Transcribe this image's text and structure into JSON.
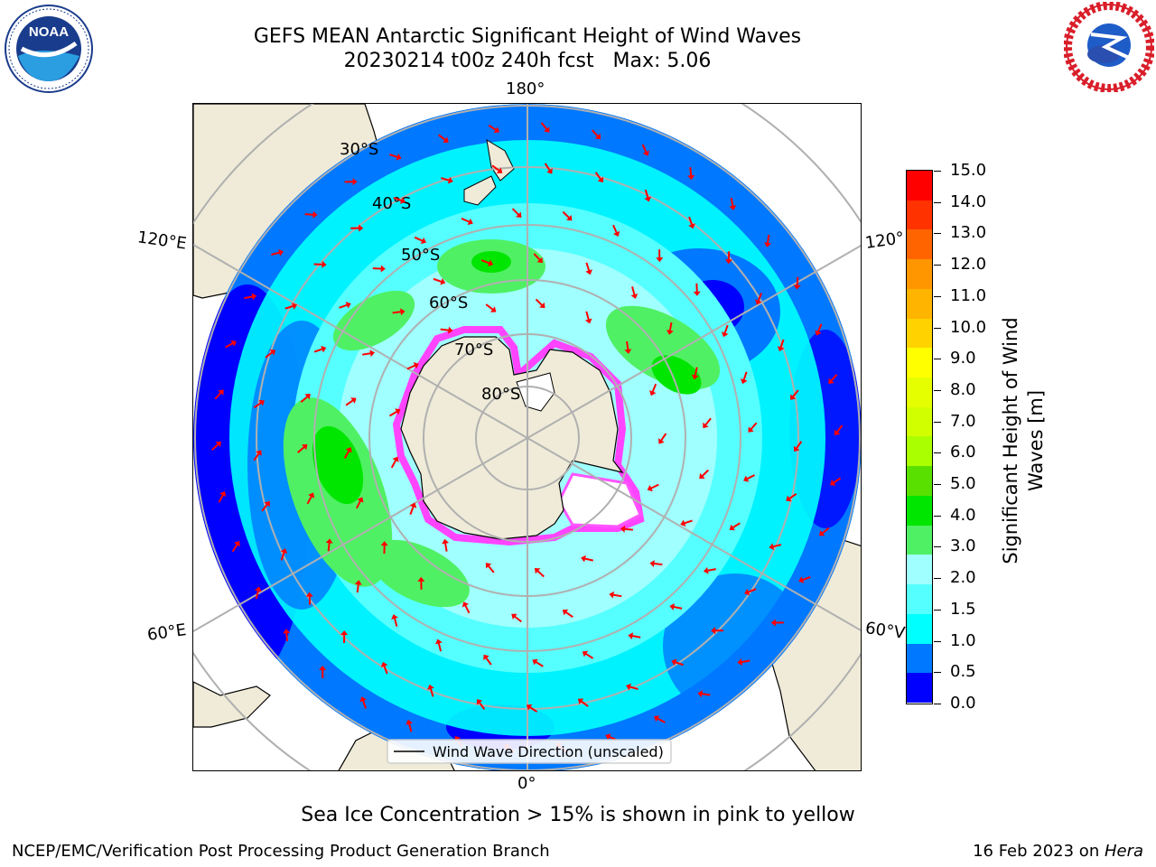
{
  "header": {
    "title_line1": "GEFS MEAN Antarctic Significant Height of Wind Waves",
    "title_line2": "20230214 t00z 240h fcst   Max: 5.06"
  },
  "logos": {
    "left": {
      "name": "noaa-logo",
      "text": "NOAA",
      "ring_text": "NATIONAL OCEANIC AND ATMOSPHERIC ADMINISTRATION · U.S. DEPARTMENT OF COMMERCE"
    },
    "right": {
      "name": "nws-logo",
      "ring_text": "NATIONAL WEATHER SERVICE"
    }
  },
  "map": {
    "longitude_labels": {
      "top": "180°",
      "bottom": "0°",
      "upper_left": "120°E",
      "lower_left": "60°E",
      "upper_right": "120°",
      "lower_right": "60°V"
    },
    "latitude_labels": [
      "30°S",
      "40°S",
      "50°S",
      "60°S",
      "70°S",
      "80°S"
    ],
    "legend": "Wind Wave Direction (unscaled)",
    "colors": {
      "land": "#efebd8",
      "ocean_deep_blue": "#0000ff",
      "ocean_blue": "#0078ff",
      "arrow": "#ff0000"
    }
  },
  "colorbar": {
    "title": "Significant Height of Wind Waves [m]",
    "title_line1": "Significant Height of Wind",
    "title_line2": "Waves [m]",
    "tick_labels": [
      "15.0",
      "14.0",
      "13.0",
      "12.0",
      "11.0",
      "10.0",
      "9.0",
      "8.0",
      "7.0",
      "6.0",
      "5.0",
      "4.0",
      "3.0",
      "2.0",
      "1.5",
      "1.0",
      "0.5",
      "0.0"
    ],
    "colors_top_to_bottom": [
      "#ff0000",
      "#ff3200",
      "#ff6400",
      "#ff9600",
      "#ffb400",
      "#ffd200",
      "#ffff00",
      "#e6ff00",
      "#d2ff00",
      "#aaff00",
      "#5ae000",
      "#00e600",
      "#50f064",
      "#a0ffff",
      "#55ffff",
      "#00ffff",
      "#0078ff",
      "#0000ff"
    ]
  },
  "note": "Sea Ice Concentration > 15% is shown in pink to yellow",
  "footer": {
    "left": "NCEP/EMC/Verification Post Processing Product Generation Branch",
    "right_date": "16 Feb 2023 on ",
    "right_host": "Hera"
  }
}
